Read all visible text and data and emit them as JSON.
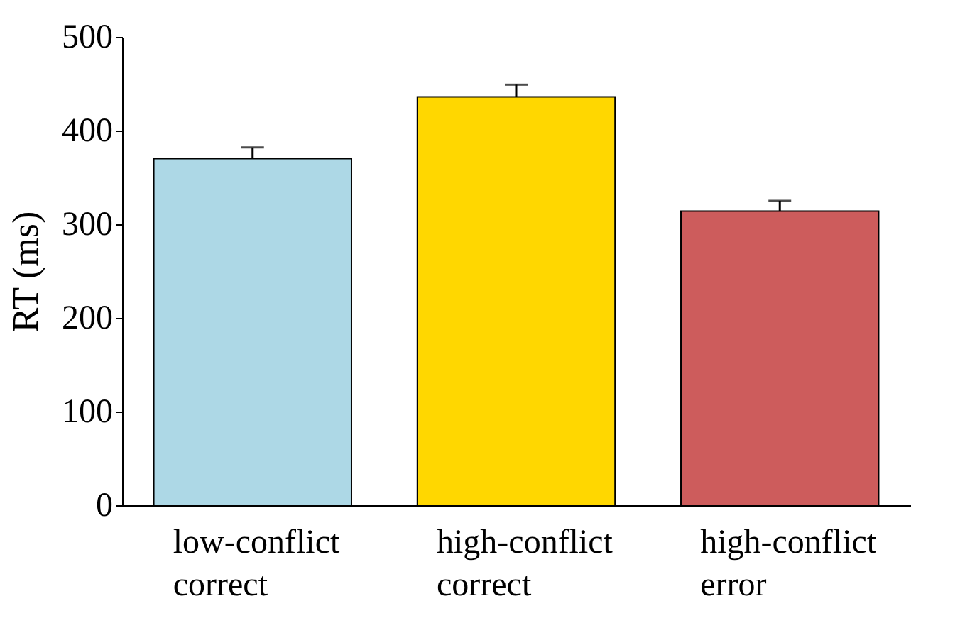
{
  "chart_data": {
    "type": "bar",
    "ylabel": "RT (ms)",
    "categories": [
      "low-conflict\ncorrect",
      "high-conflict\ncorrect",
      "high-conflict\nerror"
    ],
    "values": [
      370,
      436,
      314
    ],
    "colors": [
      "#add8e6",
      "#ffd700",
      "#cd5c5c"
    ],
    "errors": [
      [
        370,
        382
      ],
      [
        436,
        449
      ],
      [
        314,
        325
      ]
    ],
    "ylim": [
      0,
      500
    ],
    "yticks": [
      0,
      100,
      200,
      300,
      400,
      500
    ],
    "grid": false
  }
}
